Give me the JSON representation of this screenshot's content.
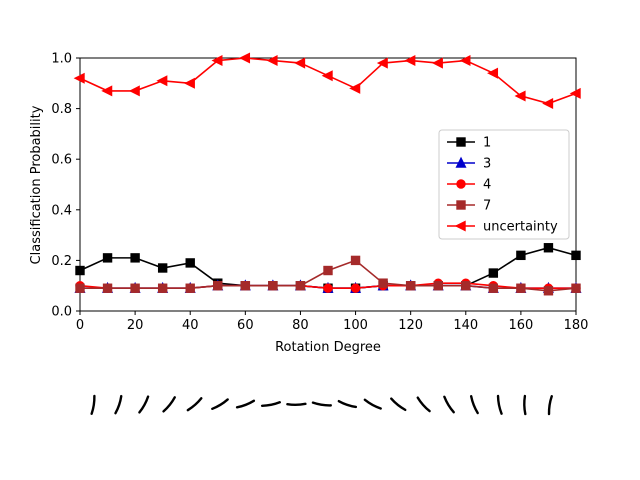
{
  "chart_data": {
    "type": "line",
    "xlabel": "Rotation Degree",
    "ylabel": "Classification Probability",
    "xlim": [
      0,
      180
    ],
    "ylim": [
      0.0,
      1.0
    ],
    "xticks": [
      "0",
      "20",
      "40",
      "60",
      "80",
      "100",
      "120",
      "140",
      "160",
      "180"
    ],
    "yticks": [
      "0.0",
      "0.2",
      "0.4",
      "0.6",
      "0.8",
      "1.0"
    ],
    "grid": false,
    "legend_position": "center-right",
    "x": [
      0,
      10,
      20,
      30,
      40,
      50,
      60,
      70,
      80,
      90,
      100,
      110,
      120,
      130,
      140,
      150,
      160,
      170,
      180
    ],
    "series": [
      {
        "name": "1",
        "color": "#000000",
        "marker": "square",
        "values": [
          0.16,
          0.21,
          0.21,
          0.17,
          0.19,
          0.11,
          0.1,
          0.1,
          0.1,
          0.09,
          0.09,
          0.1,
          0.1,
          0.1,
          0.1,
          0.15,
          0.22,
          0.25,
          0.22
        ]
      },
      {
        "name": "3",
        "color": "#0000cc",
        "marker": "triangle-up",
        "values": [
          0.09,
          0.09,
          0.09,
          0.09,
          0.09,
          0.1,
          0.1,
          0.1,
          0.1,
          0.09,
          0.09,
          0.1,
          0.1,
          0.1,
          0.1,
          0.09,
          0.09,
          0.09,
          0.09
        ]
      },
      {
        "name": "4",
        "color": "#ff0000",
        "marker": "circle",
        "values": [
          0.1,
          0.09,
          0.09,
          0.09,
          0.09,
          0.1,
          0.1,
          0.1,
          0.1,
          0.09,
          0.09,
          0.1,
          0.1,
          0.11,
          0.11,
          0.1,
          0.09,
          0.09,
          0.09
        ]
      },
      {
        "name": "7",
        "color": "#a52a2a",
        "marker": "square",
        "values": [
          0.09,
          0.09,
          0.09,
          0.09,
          0.09,
          0.1,
          0.1,
          0.1,
          0.1,
          0.16,
          0.2,
          0.11,
          0.1,
          0.1,
          0.1,
          0.09,
          0.09,
          0.08,
          0.09
        ]
      },
      {
        "name": "uncertainty",
        "color": "#ff0000",
        "marker": "triangle-left",
        "values": [
          0.92,
          0.87,
          0.87,
          0.91,
          0.9,
          0.99,
          1.0,
          0.99,
          0.98,
          0.93,
          0.88,
          0.98,
          0.99,
          0.98,
          0.99,
          0.94,
          0.85,
          0.82,
          0.86
        ]
      }
    ],
    "digit_strip": {
      "angles": [
        0,
        10,
        20,
        30,
        40,
        50,
        60,
        70,
        80,
        90,
        100,
        110,
        120,
        130,
        140,
        150,
        160,
        170,
        180
      ]
    }
  }
}
